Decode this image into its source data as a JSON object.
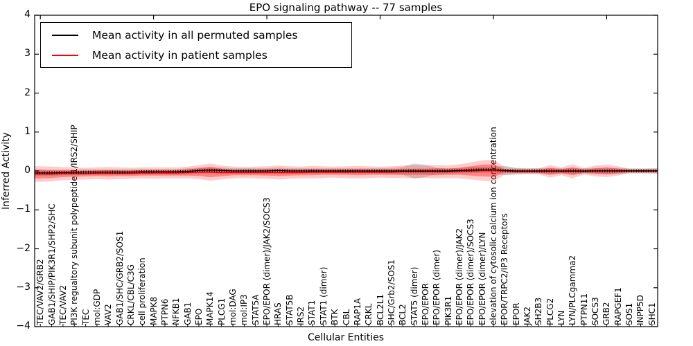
{
  "legend": {
    "entries": [
      {
        "label": "Mean activity in all permuted samples",
        "color": "#000000"
      },
      {
        "label": "Mean activity in patient samples",
        "color": "#ff0000"
      }
    ]
  },
  "chart_data": {
    "type": "line",
    "title": "EPO signaling pathway -- 77 samples",
    "xlabel": "Cellular Entities",
    "ylabel": "Inferred Activity",
    "ylim": [
      -4,
      4
    ],
    "yticks": [
      4,
      3,
      2,
      1,
      0,
      -1,
      -2,
      -3,
      -4
    ],
    "x_top_tick_indices": [
      0,
      10,
      20,
      30,
      40,
      50
    ],
    "grid": false,
    "legend_position": "upper left",
    "categories": [
      "TEC/VAV2/GRB2",
      "GAB1/SHIP/PIK3R1/SHP2/SHC",
      "TEC/VAV2",
      "PI3K regualtory subunit polypeptide 1/IRS2/SHIP",
      "TEC",
      "mol:GDP",
      "VAV2",
      "GAB1/SHC/GRB2/SOS1",
      "CRKL/CBL/C3G",
      "cell proliferation",
      "MAPK8",
      "PTPN6",
      "NFKB1",
      "GAB1",
      "EPO",
      "MAPK14",
      "PLCG1",
      "mol:DAG",
      "mol:IP3",
      "STAT5A",
      "EPO/EPOR (dimer)/JAK2/SOCS3",
      "HRAS",
      "STAT5B",
      "IRS2",
      "STAT1",
      "STAT1 (dimer)",
      "BTK",
      "CBL",
      "RAP1A",
      "CRKL",
      "BCL2L1",
      "SHC/Grb2/SOS1",
      "BCL2",
      "STAT5 (dimer)",
      "EPO/EPOR",
      "EPO/EPOR (dimer)",
      "PIK3R1",
      "EPO/EPOR (dimer)/JAK2",
      "EPO/EPOR (dimer)/SOCS3",
      "EPO/EPOR (dimer)/LYN",
      "elevation of cytosolic calcium ion concentration",
      "EPOR/TRPC2/IP3 Receptors",
      "EPOR",
      "JAK2",
      "SH2B3",
      "PLCG2",
      "LYN",
      "LYN/PLCgamma2",
      "PTPN11",
      "SOCS3",
      "GRB2",
      "RAPGEF1",
      "SOS1",
      "INPP5D",
      "SHC1"
    ],
    "series": [
      {
        "name": "Mean activity in all permuted samples",
        "color": "#000000",
        "band_color": "rgba(128,128,128,0.30)",
        "values": [
          -0.05,
          -0.05,
          -0.04,
          -0.04,
          -0.03,
          -0.03,
          -0.03,
          -0.03,
          -0.03,
          -0.02,
          -0.02,
          -0.02,
          -0.02,
          -0.01,
          0.01,
          0.02,
          0.01,
          0,
          0,
          0,
          0,
          0.01,
          0,
          0,
          0,
          0,
          0,
          0,
          0,
          0,
          0,
          0,
          0,
          0,
          0,
          0,
          0,
          0.01,
          0.02,
          0.03,
          0.03,
          0.01,
          0,
          0,
          0,
          0,
          0,
          0,
          0,
          0,
          0,
          0,
          0,
          0,
          0
        ],
        "band_halfwidth": [
          0.08,
          0.08,
          0.07,
          0.07,
          0.07,
          0.07,
          0.07,
          0.07,
          0.07,
          0.07,
          0.07,
          0.07,
          0.07,
          0.08,
          0.08,
          0.08,
          0.08,
          0.07,
          0.07,
          0.07,
          0.07,
          0.08,
          0.07,
          0.07,
          0.07,
          0.07,
          0.07,
          0.07,
          0.07,
          0.07,
          0.07,
          0.08,
          0.1,
          0.19,
          0.16,
          0.08,
          0.07,
          0.07,
          0.08,
          0.08,
          0.08,
          0.12,
          0.08,
          0.07,
          0.07,
          0.08,
          0.07,
          0.08,
          0.07,
          0.08,
          0.08,
          0.08,
          0.07,
          0.07,
          0.07
        ]
      },
      {
        "name": "Mean activity in patient samples",
        "color": "#ff0000",
        "inner_band_color": "rgba(255,0,0,0.35)",
        "outer_band_color": "rgba(255,0,0,0.20)",
        "values": [
          -0.08,
          -0.08,
          -0.07,
          -0.07,
          -0.07,
          -0.06,
          -0.06,
          -0.06,
          -0.06,
          -0.05,
          -0.05,
          -0.05,
          -0.05,
          -0.04,
          -0.03,
          -0.03,
          -0.04,
          -0.04,
          -0.04,
          -0.04,
          -0.04,
          -0.04,
          -0.04,
          -0.04,
          -0.03,
          -0.03,
          -0.03,
          -0.03,
          -0.03,
          -0.03,
          -0.03,
          -0.03,
          -0.02,
          -0.02,
          -0.02,
          -0.02,
          -0.02,
          -0.01,
          0,
          0.01,
          0.01,
          0,
          -0.01,
          -0.01,
          -0.01,
          -0.01,
          -0.01,
          -0.01,
          -0.01,
          0,
          0,
          0,
          0,
          0,
          0
        ],
        "inner_band_halfwidth": [
          0.11,
          0.1,
          0.09,
          0.08,
          0.07,
          0.07,
          0.08,
          0.07,
          0.07,
          0.07,
          0.07,
          0.07,
          0.07,
          0.08,
          0.1,
          0.13,
          0.1,
          0.07,
          0.07,
          0.07,
          0.08,
          0.09,
          0.08,
          0.07,
          0.08,
          0.07,
          0.07,
          0.07,
          0.08,
          0.07,
          0.07,
          0.07,
          0.08,
          0.08,
          0.08,
          0.09,
          0.08,
          0.09,
          0.12,
          0.15,
          0.16,
          0.05,
          0.04,
          0.04,
          0.04,
          0.09,
          0.05,
          0.1,
          0.04,
          0.07,
          0.09,
          0.06,
          0.03,
          0.03,
          0.03
        ],
        "outer_band_halfwidth": [
          0.2,
          0.19,
          0.17,
          0.16,
          0.15,
          0.15,
          0.16,
          0.15,
          0.14,
          0.14,
          0.15,
          0.14,
          0.14,
          0.15,
          0.18,
          0.22,
          0.18,
          0.15,
          0.14,
          0.15,
          0.16,
          0.18,
          0.16,
          0.15,
          0.16,
          0.15,
          0.14,
          0.15,
          0.16,
          0.15,
          0.14,
          0.15,
          0.16,
          0.17,
          0.16,
          0.17,
          0.16,
          0.18,
          0.22,
          0.26,
          0.28,
          0.1,
          0.08,
          0.07,
          0.08,
          0.16,
          0.1,
          0.18,
          0.08,
          0.14,
          0.16,
          0.12,
          0.05,
          0.05,
          0.06
        ]
      }
    ]
  }
}
